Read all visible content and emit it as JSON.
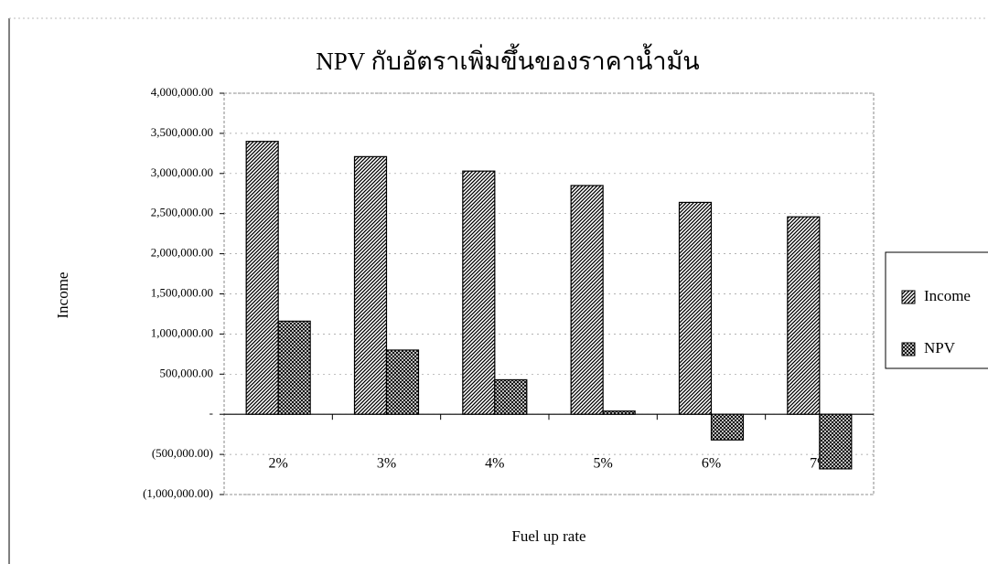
{
  "chart_data": {
    "type": "bar",
    "title": "NPV กับอัตราเพิ่มขึ้นของราคาน้ำมัน",
    "x_label": "Fuel up rate",
    "y_label": "Income",
    "categories": [
      "2%",
      "3%",
      "4%",
      "5%",
      "6%",
      "7%"
    ],
    "series": [
      {
        "name": "Income",
        "color": "#000000",
        "values": [
          3400000,
          3210000,
          3030000,
          2850000,
          2640000,
          2460000
        ]
      },
      {
        "name": "NPV",
        "color": "#000000",
        "values": [
          1160000,
          800000,
          430000,
          40000,
          -320000,
          -680000
        ]
      }
    ],
    "ylim": [
      -1000000,
      4000000
    ],
    "yticks": [
      {
        "value": -1000000,
        "label": "(1,000,000.00)"
      },
      {
        "value": -500000,
        "label": "(500,000.00)"
      },
      {
        "value": 0,
        "label": "-"
      },
      {
        "value": 500000,
        "label": "500,000.00"
      },
      {
        "value": 1000000,
        "label": "1,000,000.00"
      },
      {
        "value": 1500000,
        "label": "1,500,000.00"
      },
      {
        "value": 2000000,
        "label": "2,000,000.00"
      },
      {
        "value": 2500000,
        "label": "2,500,000.00"
      },
      {
        "value": 3000000,
        "label": "3,000,000.00"
      },
      {
        "value": 3500000,
        "label": "3,500,000.00"
      },
      {
        "value": 4000000,
        "label": "4,000,000.00"
      }
    ],
    "grid": true,
    "legend": "right"
  }
}
